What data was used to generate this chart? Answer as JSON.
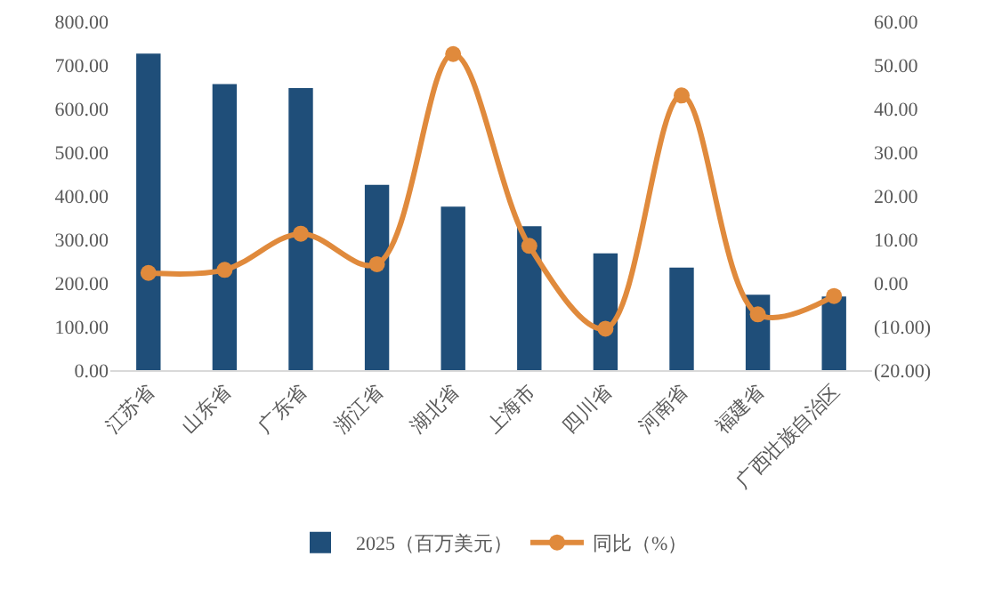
{
  "chart_data": {
    "type": "bar",
    "categories": [
      "江苏省",
      "山东省",
      "广东省",
      "浙江省",
      "湖北省",
      "上海市",
      "四川省",
      "河南省",
      "福建省",
      "广西壮族自治区"
    ],
    "series": [
      {
        "name": "2025（百万美元）",
        "color": "#1f4e79",
        "values": [
          726,
          656,
          647,
          425,
          375,
          330,
          268,
          235,
          173,
          169
        ]
      },
      {
        "name": "同比（%）",
        "type": "line",
        "axis": "y2",
        "color": "#e08a3c",
        "marker": "circle",
        "values": [
          2.3,
          3,
          11.3,
          4.3,
          52.5,
          8.5,
          -10.5,
          43,
          -7.2,
          -3
        ]
      }
    ],
    "ylim": [
      0,
      800
    ],
    "yticks": [
      {
        "value": 0,
        "label": "0.00"
      },
      {
        "value": 100,
        "label": "100.00"
      },
      {
        "value": 200,
        "label": "200.00"
      },
      {
        "value": 300,
        "label": "300.00"
      },
      {
        "value": 400,
        "label": "400.00"
      },
      {
        "value": 500,
        "label": "500.00"
      },
      {
        "value": 600,
        "label": "600.00"
      },
      {
        "value": 700,
        "label": "700.00"
      },
      {
        "value": 800,
        "label": "800.00"
      }
    ],
    "y2lim": [
      -20,
      60
    ],
    "y2ticks": [
      {
        "value": -20,
        "label": "(20.00)"
      },
      {
        "value": -10,
        "label": "(10.00)"
      },
      {
        "value": 0,
        "label": "0.00"
      },
      {
        "value": 10,
        "label": "10.00"
      },
      {
        "value": 20,
        "label": "20.00"
      },
      {
        "value": 30,
        "label": "30.00"
      },
      {
        "value": 40,
        "label": "40.00"
      },
      {
        "value": 50,
        "label": "50.00"
      },
      {
        "value": 60,
        "label": "60.00"
      }
    ],
    "grid": false,
    "legend": "bottom"
  }
}
